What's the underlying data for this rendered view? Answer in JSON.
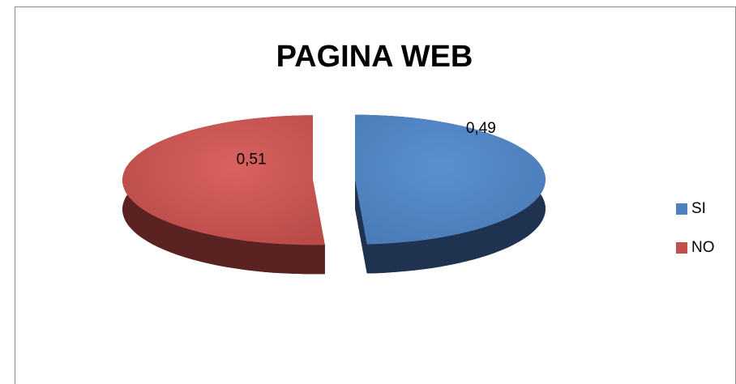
{
  "chart_data": {
    "type": "pie",
    "title": "PAGINA WEB",
    "categories": [
      "SI",
      "NO"
    ],
    "values": [
      0.49,
      0.51
    ],
    "value_labels": [
      "0,49",
      "0,51"
    ],
    "colors": [
      "#4f81bd",
      "#c0504d"
    ],
    "legend": "right"
  }
}
